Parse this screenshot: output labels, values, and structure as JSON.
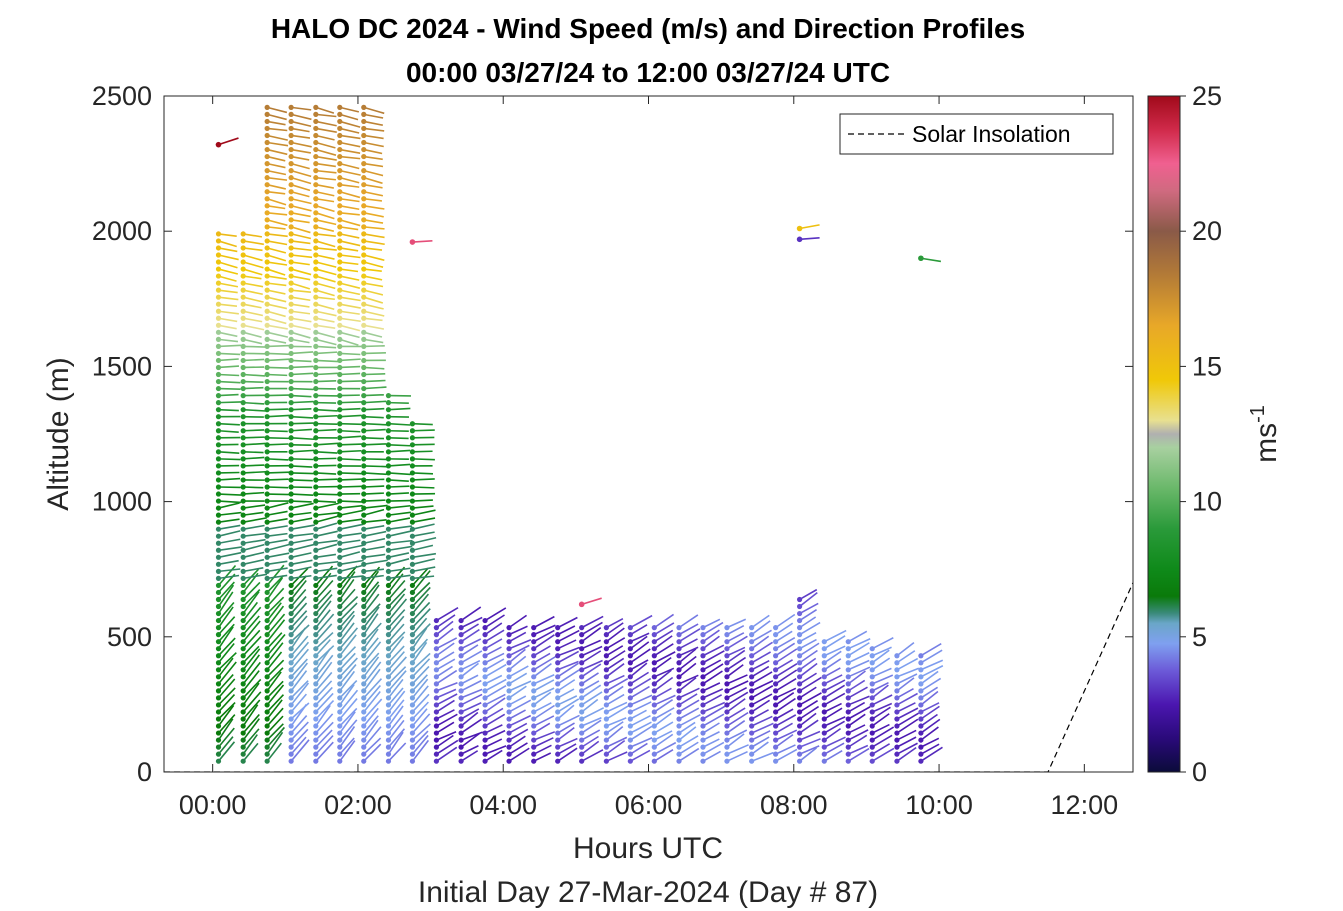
{
  "chart_data": {
    "type": "scatter",
    "title": "HALO DC 2024 - Wind Speed (m/s) and Direction Profiles",
    "subtitle": "00:00 03/27/24 to 12:00 03/27/24  UTC",
    "xlabel": "Hours UTC",
    "xlabel2": "Initial Day 27-Mar-2024 (Day # 87)",
    "ylabel": "Altitude (m)",
    "xlim": [
      -0.67,
      12.67
    ],
    "ylim": [
      0,
      2500
    ],
    "xticks": [
      0,
      2,
      4,
      6,
      8,
      10,
      12
    ],
    "xtick_labels": [
      "00:00",
      "02:00",
      "04:00",
      "06:00",
      "08:00",
      "10:00",
      "12:00"
    ],
    "yticks": [
      0,
      500,
      1000,
      1500,
      2000,
      2500
    ],
    "ytick_labels": [
      "0",
      "500",
      "1000",
      "1500",
      "2000",
      "2500"
    ],
    "colorbar": {
      "label": "ms",
      "label_sup": "-1",
      "range": [
        0,
        25
      ],
      "ticks": [
        0,
        5,
        10,
        15,
        20,
        25
      ],
      "tick_labels": [
        "0",
        "5",
        "10",
        "15",
        "20",
        "25"
      ]
    },
    "legend": {
      "entries": [
        "Solar Insolation"
      ],
      "position": "top-right"
    },
    "solar_insolation": {
      "x": [
        -0.67,
        11.5,
        12.67
      ],
      "y": [
        0,
        0,
        700
      ]
    },
    "profiles": [
      {
        "t": 0.08,
        "top": 2000,
        "deep": 0.35
      },
      {
        "t": 0.42,
        "top": 2000,
        "deep": 0.35
      },
      {
        "t": 0.75,
        "top": 2480,
        "deep": 0.35
      },
      {
        "t": 1.08,
        "top": 2480,
        "deep": 0.45
      },
      {
        "t": 1.42,
        "top": 2480,
        "deep": 0.5
      },
      {
        "t": 1.75,
        "top": 2480,
        "deep": 0.55
      },
      {
        "t": 2.08,
        "top": 2480,
        "deep": 0.6
      },
      {
        "t": 2.42,
        "top": 1400,
        "deep": 0.65
      },
      {
        "t": 2.75,
        "top": 1300,
        "deep": 0.7
      },
      {
        "t": 3.08,
        "top": 580,
        "deep": 0.75
      },
      {
        "t": 3.42,
        "top": 580,
        "deep": 0.8
      },
      {
        "t": 3.75,
        "top": 560,
        "deep": 0.85
      },
      {
        "t": 4.08,
        "top": 540,
        "deep": 0.9
      },
      {
        "t": 4.42,
        "top": 540,
        "deep": 0.9
      },
      {
        "t": 4.75,
        "top": 540,
        "deep": 0.9
      },
      {
        "t": 5.08,
        "top": 540,
        "deep": 0.9
      },
      {
        "t": 5.42,
        "top": 540,
        "deep": 0.85
      },
      {
        "t": 5.75,
        "top": 540,
        "deep": 0.85
      },
      {
        "t": 6.08,
        "top": 540,
        "deep": 0.85
      },
      {
        "t": 6.42,
        "top": 540,
        "deep": 0.85
      },
      {
        "t": 6.75,
        "top": 540,
        "deep": 0.8
      },
      {
        "t": 7.08,
        "top": 540,
        "deep": 0.8
      },
      {
        "t": 7.42,
        "top": 540,
        "deep": 0.8
      },
      {
        "t": 7.75,
        "top": 540,
        "deep": 0.8
      },
      {
        "t": 8.08,
        "top": 640,
        "deep": 0.8
      },
      {
        "t": 8.42,
        "top": 500,
        "deep": 0.85
      },
      {
        "t": 8.75,
        "top": 500,
        "deep": 0.85
      },
      {
        "t": 9.08,
        "top": 480,
        "deep": 0.85
      },
      {
        "t": 9.42,
        "top": 440,
        "deep": 0.85
      },
      {
        "t": 9.75,
        "top": 430,
        "deep": 0.85
      }
    ],
    "isolated_points": [
      {
        "t": 0.08,
        "alt": 2320,
        "speed": 25
      },
      {
        "t": 2.75,
        "alt": 1960,
        "speed": 23
      },
      {
        "t": 5.08,
        "alt": 620,
        "speed": 23
      },
      {
        "t": 8.08,
        "alt": 1970,
        "speed": 3
      },
      {
        "t": 8.08,
        "alt": 2010,
        "speed": 15
      },
      {
        "t": 9.75,
        "alt": 1900,
        "speed": 9
      }
    ]
  }
}
